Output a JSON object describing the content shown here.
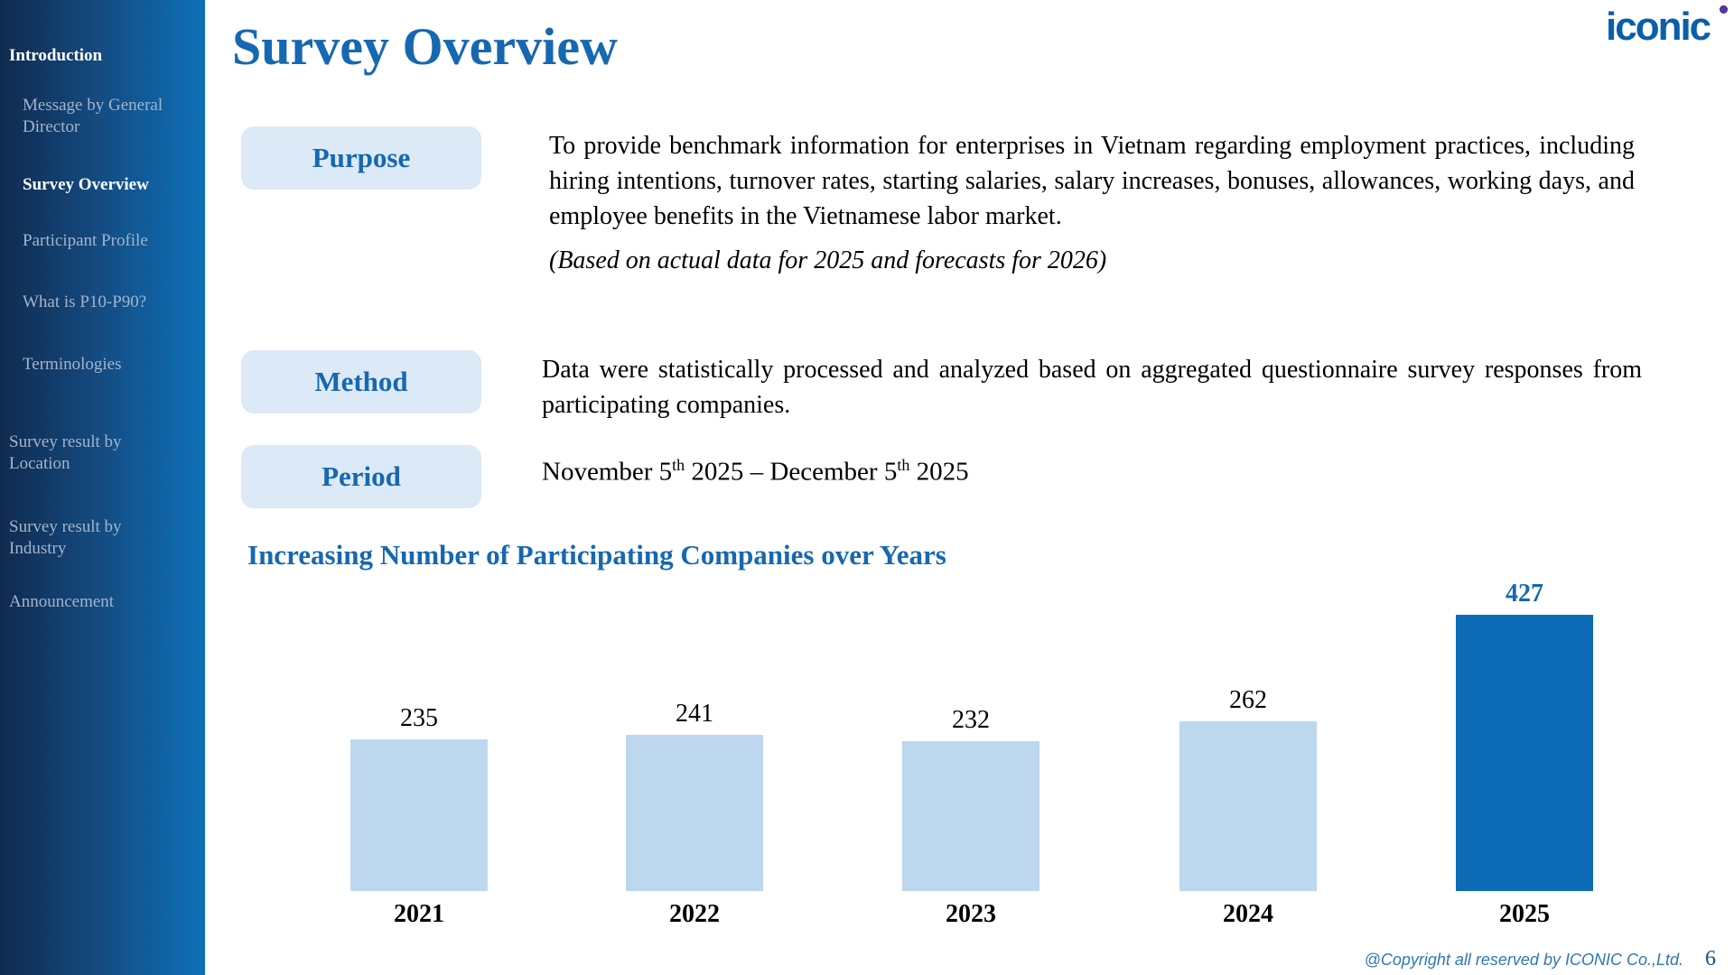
{
  "slide": {
    "title": "Survey Overview",
    "footer": "@Copyright all reserved by ICONIC Co.,Ltd.",
    "page_number": "6"
  },
  "logo": {
    "text": "iconic"
  },
  "sidebar": {
    "items": [
      {
        "label": "Introduction",
        "type": "section",
        "active": true
      },
      {
        "label": "Message by General Director",
        "type": "sub",
        "active": false
      },
      {
        "label": "Survey Overview",
        "type": "sub",
        "active": true
      },
      {
        "label": "Participant Profile",
        "type": "sub",
        "active": false
      },
      {
        "label": "What is P10-P90?",
        "type": "sub",
        "active": false
      },
      {
        "label": "Terminologies",
        "type": "sub",
        "active": false
      },
      {
        "label": "Survey result by Location",
        "type": "section",
        "active": false
      },
      {
        "label": "Survey result by Industry",
        "type": "section",
        "active": false
      },
      {
        "label": "Announcement",
        "type": "section",
        "active": false
      }
    ]
  },
  "sections": {
    "purpose": {
      "label": "Purpose",
      "text": "To provide benchmark information for enterprises in Vietnam regarding employment practices, including hiring intentions, turnover rates, starting salaries, salary increases, bonuses, allowances, working days, and employee benefits in the Vietnamese labor market.",
      "note": "(Based on actual data for 2025 and forecasts for 2026)"
    },
    "method": {
      "label": "Method",
      "text": "Data were statistically processed and analyzed based on aggregated questionnaire survey responses from participating companies."
    },
    "period": {
      "label": "Period",
      "date_parts": {
        "p1": "November 5",
        "sup1": "th",
        "p2": " 2025 – December 5",
        "sup2": "th",
        "p3": " 2025"
      }
    }
  },
  "chart_data": {
    "type": "bar",
    "title": "Increasing Number of Participating Companies over Years",
    "categories": [
      "2021",
      "2022",
      "2023",
      "2024",
      "2025"
    ],
    "values": [
      235,
      241,
      232,
      262,
      427
    ],
    "highlight_index": 4,
    "bar_color": "#BDD7EE",
    "highlight_color": "#0D6AB5",
    "value_label_color": "#000000",
    "highlight_value_label_color": "#1668B0",
    "ylim": [
      0,
      427
    ],
    "grid": false,
    "legend": "none",
    "data_labels": "above-bars"
  },
  "colors": {
    "accent_blue": "#1668B0",
    "pill_background": "#DCE9F6",
    "sidebar_gradient_left": "#0F2A4E",
    "sidebar_gradient_right": "#0D70B8",
    "logo_blue": "#0B5EA8",
    "logo_dot_purple": "#5B35A6",
    "footer_blue": "#2E77B5"
  }
}
